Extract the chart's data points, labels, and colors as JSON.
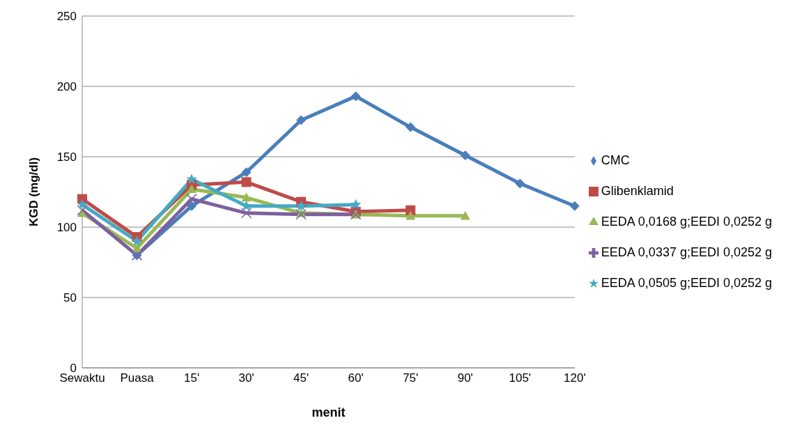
{
  "chart_data": {
    "type": "line",
    "xlabel": "menit",
    "ylabel": "KGD (mg/dl)",
    "categories": [
      "Sewaktu",
      "Puasa",
      "15'",
      "30'",
      "45'",
      "60'",
      "75'",
      "90'",
      "105'",
      "120'"
    ],
    "series": [
      {
        "name": "CMC",
        "color": "#4a7ebb",
        "marker": "diamond",
        "values": [
          null,
          80,
          115,
          139,
          176,
          193,
          171,
          151,
          131,
          115
        ]
      },
      {
        "name": "Glibenklamid",
        "color": "#be4b48",
        "marker": "square",
        "values": [
          120,
          93,
          130,
          132,
          118,
          111,
          112,
          null,
          null,
          null
        ]
      },
      {
        "name": "EEDA 0,0168 g;EEDI 0,0252 g",
        "color": "#98b954",
        "marker": "triangle",
        "values": [
          110,
          85,
          127,
          121,
          110,
          109,
          108,
          108,
          null,
          null
        ]
      },
      {
        "name": "EEDA 0,0337 g;EEDI 0,0252 g",
        "color": "#7d60a0",
        "marker": "cross",
        "values": [
          112,
          80,
          120,
          110,
          109,
          109,
          null,
          null,
          null,
          null
        ]
      },
      {
        "name": "EEDA 0,0505 g;EEDI 0,0252 g",
        "color": "#46aac5",
        "marker": "star",
        "values": [
          116,
          90,
          134,
          115,
          115,
          116,
          null,
          null,
          null,
          null
        ]
      }
    ],
    "ylim": [
      0,
      250
    ],
    "yticks": [
      0,
      50,
      100,
      150,
      200,
      250
    ],
    "grid": "y",
    "legend": "right"
  }
}
